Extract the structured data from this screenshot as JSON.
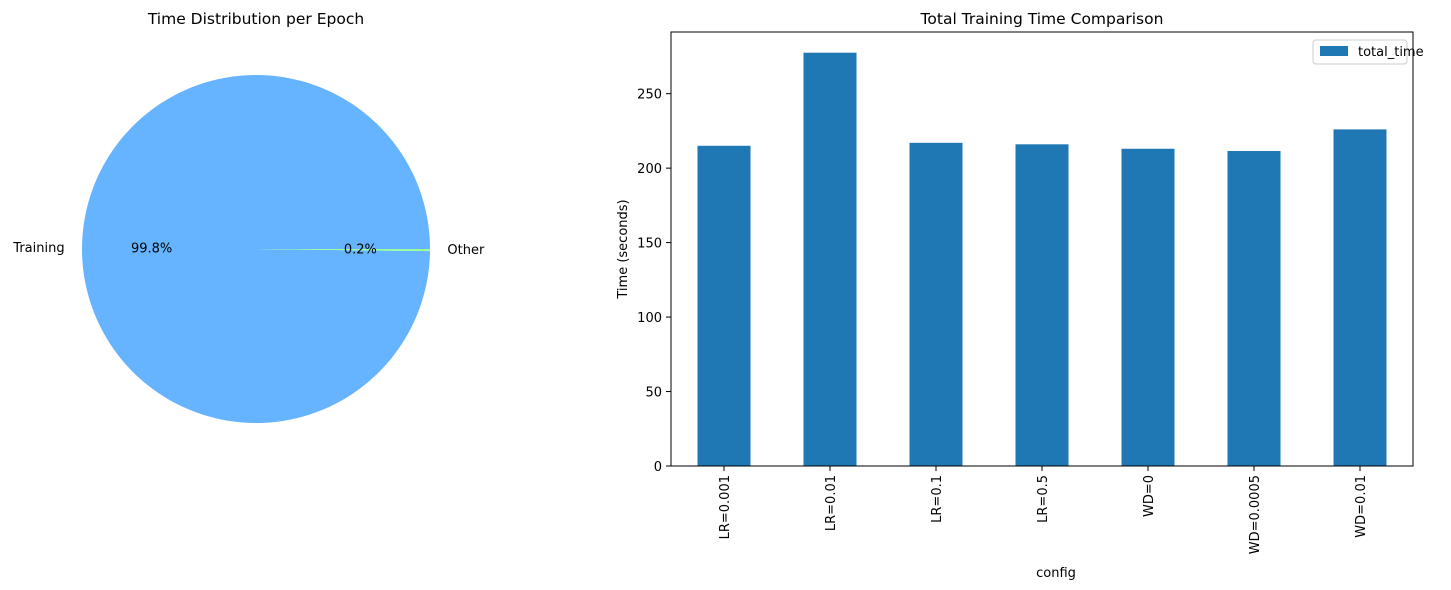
{
  "chart_data": [
    {
      "type": "pie",
      "title": "Time Distribution per Epoch",
      "slices": [
        {
          "label": "Training",
          "value": 99.8,
          "pct_label": "99.8%",
          "color": "#66b3ff"
        },
        {
          "label": "Other",
          "value": 0.2,
          "pct_label": "0.2%",
          "color": "#99ff99"
        }
      ]
    },
    {
      "type": "bar",
      "title": "Total Training Time Comparison",
      "xlabel": "config",
      "ylabel": "Time (seconds)",
      "categories": [
        "LR=0.001",
        "LR=0.01",
        "LR=0.1",
        "LR=0.5",
        "WD=0",
        "WD=0.0005",
        "WD=0.01"
      ],
      "series": [
        {
          "name": "total_time",
          "color": "#1f77b4",
          "values": [
            215,
            277.5,
            217,
            216,
            213,
            211.5,
            226
          ]
        }
      ],
      "ylim": [
        0,
        291.4
      ],
      "yticks": [
        0,
        50,
        100,
        150,
        200,
        250
      ],
      "legend": "top-right",
      "grid": false
    }
  ]
}
